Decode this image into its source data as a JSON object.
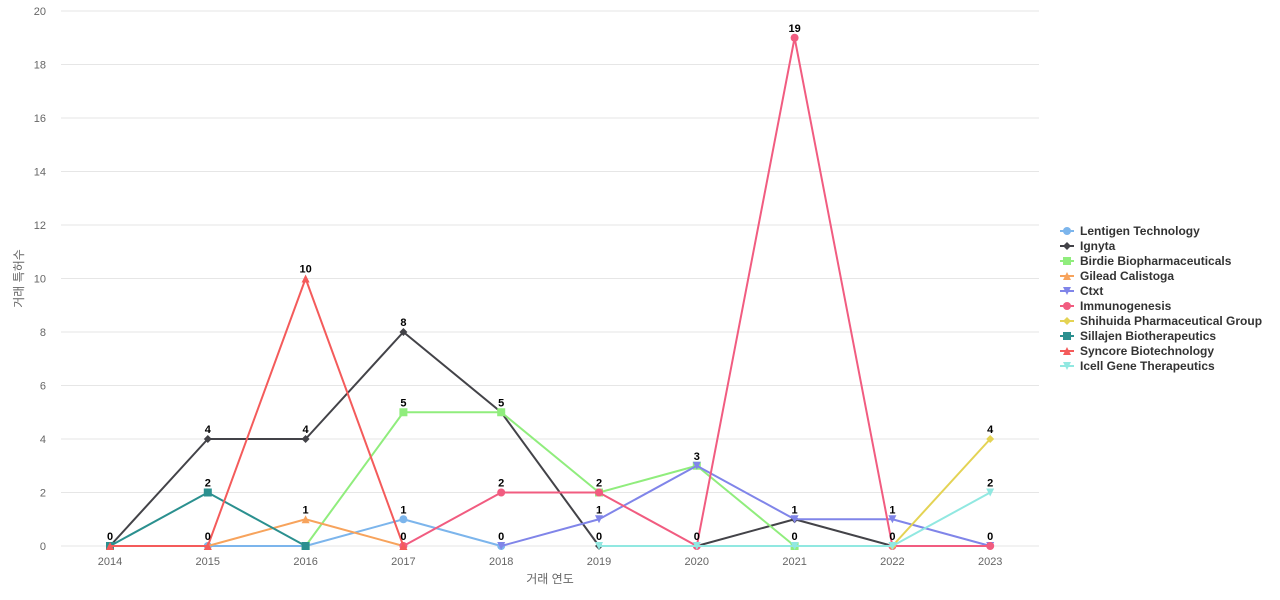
{
  "chart_data": {
    "type": "line",
    "xlabel": "거래 연도",
    "ylabel": "거래 특허수",
    "ylim": [
      0,
      20
    ],
    "yticks": [
      0,
      2,
      4,
      6,
      8,
      10,
      12,
      14,
      16,
      18,
      20
    ],
    "categories": [
      "2014",
      "2015",
      "2016",
      "2017",
      "2018",
      "2019",
      "2020",
      "2021",
      "2022",
      "2023"
    ],
    "grid": true,
    "legend_position": "right",
    "series": [
      {
        "name": "Lentigen Technology",
        "color": "#7cb5ec",
        "marker": "circle",
        "values": [
          0,
          0,
          0,
          1,
          0,
          null,
          null,
          null,
          null,
          null
        ],
        "labels": [
          false,
          false,
          false,
          true,
          false,
          false,
          false,
          false,
          false,
          false
        ]
      },
      {
        "name": "Ignyta",
        "color": "#434348",
        "marker": "diamond",
        "values": [
          0,
          4,
          4,
          8,
          5,
          0,
          0,
          1,
          0,
          null
        ],
        "labels": [
          false,
          true,
          true,
          true,
          false,
          false,
          false,
          false,
          true,
          false
        ]
      },
      {
        "name": "Birdie Biopharmaceuticals",
        "color": "#90ed7d",
        "marker": "square",
        "values": [
          null,
          null,
          0,
          5,
          5,
          2,
          3,
          0,
          null,
          null
        ],
        "labels": [
          false,
          false,
          false,
          true,
          true,
          true,
          true,
          true,
          false,
          false
        ]
      },
      {
        "name": "Gilead Calistoga",
        "color": "#f7a35c",
        "marker": "triangle",
        "values": [
          null,
          0,
          1,
          0,
          null,
          null,
          null,
          null,
          null,
          null
        ],
        "labels": [
          false,
          true,
          true,
          false,
          false,
          false,
          false,
          false,
          false,
          false
        ]
      },
      {
        "name": "Ctxt",
        "color": "#8085e9",
        "marker": "triangle-down",
        "values": [
          null,
          null,
          null,
          null,
          0,
          1,
          3,
          1,
          1,
          0
        ],
        "labels": [
          false,
          false,
          false,
          false,
          true,
          true,
          false,
          true,
          true,
          true
        ]
      },
      {
        "name": "Immunogenesis",
        "color": "#f15c80",
        "marker": "circle",
        "values": [
          null,
          null,
          null,
          0,
          2,
          2,
          0,
          19,
          0,
          0
        ],
        "labels": [
          false,
          false,
          false,
          false,
          true,
          false,
          false,
          true,
          false,
          false
        ]
      },
      {
        "name": "Shihuida Pharmaceutical Group",
        "color": "#e4d354",
        "marker": "diamond",
        "values": [
          null,
          null,
          null,
          null,
          null,
          null,
          null,
          null,
          0,
          4
        ],
        "labels": [
          false,
          false,
          false,
          false,
          false,
          false,
          false,
          false,
          false,
          true
        ]
      },
      {
        "name": "Sillajen Biotherapeutics",
        "color": "#2b908f",
        "marker": "square",
        "values": [
          0,
          2,
          0,
          null,
          null,
          null,
          null,
          null,
          null,
          null
        ],
        "labels": [
          false,
          true,
          false,
          false,
          false,
          false,
          false,
          false,
          false,
          false
        ]
      },
      {
        "name": "Syncore Biotechnology",
        "color": "#f45b5b",
        "marker": "triangle",
        "values": [
          0,
          0,
          10,
          0,
          null,
          null,
          null,
          null,
          null,
          null
        ],
        "labels": [
          true,
          false,
          true,
          true,
          false,
          false,
          false,
          false,
          false,
          false
        ]
      },
      {
        "name": "Icell Gene Therapeutics",
        "color": "#91e8e1",
        "marker": "triangle-down",
        "values": [
          null,
          null,
          null,
          null,
          null,
          0,
          0,
          0,
          0,
          2
        ],
        "labels": [
          false,
          false,
          true,
          false,
          false,
          true,
          true,
          false,
          false,
          true
        ]
      }
    ]
  }
}
